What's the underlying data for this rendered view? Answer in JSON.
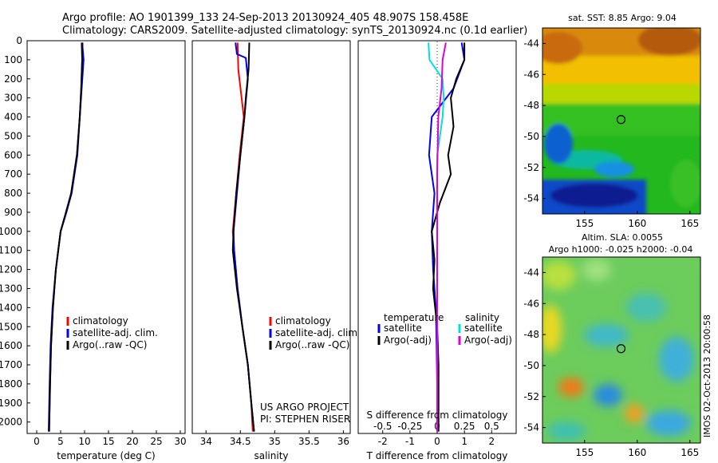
{
  "header": {
    "line1": "Argo profile: AO 1901399_133 24-Sep-2013 20130924_405 48.907S 158.458E",
    "line2": "Climatology: CARS2009. Satellite-adjusted climatology: synTS_20130924.nc (0.1d earlier)"
  },
  "side_label": "IMOS 02-Oct-2013 20:00:58",
  "chart_data": [
    {
      "type": "line",
      "id": "temperature",
      "xlabel": "temperature (deg C)",
      "ylabel": "",
      "xlim": [
        -2,
        31
      ],
      "ylim": [
        0,
        2060
      ],
      "xticks": [
        "0",
        "5",
        "10",
        "15",
        "20",
        "25",
        "30"
      ],
      "yticks": [
        "0",
        "100",
        "200",
        "300",
        "400",
        "500",
        "600",
        "700",
        "800",
        "900",
        "1000",
        "1100",
        "1200",
        "1300",
        "1400",
        "1500",
        "1600",
        "1700",
        "1800",
        "1900",
        "2000"
      ],
      "legend": [
        "climatology",
        "satellite-adj. clim.",
        "Argo(..raw -QC)"
      ],
      "series": [
        {
          "name": "climatology",
          "color": "#ff0000",
          "points": [
            [
              9.6,
              10
            ],
            [
              9.5,
              100
            ],
            [
              9.3,
              250
            ],
            [
              9.0,
              400
            ],
            [
              8.4,
              600
            ],
            [
              7.2,
              800
            ],
            [
              6.2,
              900
            ],
            [
              5.0,
              1000
            ],
            [
              4.0,
              1200
            ],
            [
              3.4,
              1400
            ],
            [
              3.0,
              1600
            ],
            [
              2.8,
              1800
            ],
            [
              2.6,
              2050
            ]
          ]
        },
        {
          "name": "satellite-adj. clim.",
          "color": "#0000ff",
          "points": [
            [
              9.5,
              10
            ],
            [
              9.8,
              100
            ],
            [
              9.4,
              250
            ],
            [
              9.0,
              400
            ],
            [
              8.5,
              600
            ],
            [
              7.3,
              800
            ],
            [
              6.2,
              900
            ],
            [
              5.0,
              1000
            ],
            [
              4.0,
              1200
            ],
            [
              3.3,
              1400
            ],
            [
              2.9,
              1600
            ],
            [
              2.7,
              1800
            ],
            [
              2.5,
              2050
            ]
          ]
        },
        {
          "name": "Argo(..raw -QC)",
          "color": "#000000",
          "points": [
            [
              9.4,
              10
            ],
            [
              9.5,
              100
            ],
            [
              9.3,
              250
            ],
            [
              9.0,
              400
            ],
            [
              8.4,
              600
            ],
            [
              7.2,
              800
            ],
            [
              6.1,
              900
            ],
            [
              5.0,
              1000
            ],
            [
              4.0,
              1200
            ],
            [
              3.4,
              1400
            ],
            [
              3.0,
              1600
            ],
            [
              2.8,
              1800
            ],
            [
              2.6,
              2050
            ]
          ]
        }
      ]
    },
    {
      "type": "line",
      "id": "salinity",
      "xlabel": "salinity",
      "xlim": [
        33.8,
        36.1
      ],
      "ylim": [
        0,
        2060
      ],
      "xticks": [
        "34",
        "34.5",
        "35",
        "35.5",
        "36"
      ],
      "legend": [
        "climatology",
        "satellite-adj. clim.",
        "Argo(..raw -QC)"
      ],
      "annotation": [
        "US ARGO PROJECT",
        "PI: STEPHEN RISER"
      ],
      "series": [
        {
          "name": "climatology",
          "color": "#ff0000",
          "points": [
            [
              34.46,
              10
            ],
            [
              34.47,
              150
            ],
            [
              34.55,
              400
            ],
            [
              34.49,
              600
            ],
            [
              34.44,
              800
            ],
            [
              34.39,
              1000
            ],
            [
              34.41,
              1100
            ],
            [
              34.46,
              1300
            ],
            [
              34.53,
              1500
            ],
            [
              34.61,
              1700
            ],
            [
              34.66,
              1900
            ],
            [
              34.68,
              2050
            ]
          ]
        },
        {
          "name": "satellite-adj. clim.",
          "color": "#0000ff",
          "points": [
            [
              34.43,
              10
            ],
            [
              34.45,
              70
            ],
            [
              34.58,
              90
            ],
            [
              34.61,
              200
            ],
            [
              34.56,
              400
            ],
            [
              34.5,
              600
            ],
            [
              34.45,
              800
            ],
            [
              34.4,
              1000
            ],
            [
              34.41,
              1100
            ],
            [
              34.46,
              1300
            ],
            [
              34.53,
              1500
            ],
            [
              34.61,
              1700
            ],
            [
              34.66,
              1900
            ],
            [
              34.7,
              2050
            ]
          ]
        },
        {
          "name": "Argo(..raw -QC)",
          "color": "#000000",
          "points": [
            [
              34.63,
              10
            ],
            [
              34.62,
              150
            ],
            [
              34.58,
              300
            ],
            [
              34.56,
              400
            ],
            [
              34.5,
              600
            ],
            [
              34.44,
              800
            ],
            [
              34.4,
              1000
            ],
            [
              34.39,
              1100
            ],
            [
              34.45,
              1300
            ],
            [
              34.53,
              1500
            ],
            [
              34.61,
              1700
            ],
            [
              34.66,
              1900
            ],
            [
              34.7,
              2050
            ]
          ]
        }
      ]
    },
    {
      "type": "line",
      "id": "difference",
      "xlabel": "T difference from climatology",
      "xlabel2": "S difference from climatology",
      "xlim": [
        -2.9,
        2.9
      ],
      "ylim": [
        0,
        2060
      ],
      "xticks": [
        "-2",
        "-1",
        "0",
        "1",
        "2"
      ],
      "xticks_s": [
        "-0.5",
        "-0.25",
        "0",
        "0.25",
        "0.5"
      ],
      "legend_headers": [
        "temperature",
        "salinity"
      ],
      "legend": [
        "satellite",
        "Argo(-adj)",
        "satellite",
        "Argo(-adj)"
      ],
      "series": [
        {
          "name": "temperature satellite",
          "color": "#0000ff",
          "points": [
            [
              0.9,
              10
            ],
            [
              1.0,
              100
            ],
            [
              0.6,
              250
            ],
            [
              -0.2,
              400
            ],
            [
              -0.3,
              600
            ],
            [
              -0.1,
              800
            ],
            [
              -0.2,
              1000
            ],
            [
              -0.15,
              1200
            ],
            [
              -0.05,
              1400
            ],
            [
              -0.02,
              1600
            ],
            [
              0.0,
              1800
            ],
            [
              0.0,
              2050
            ]
          ]
        },
        {
          "name": "temperature Argo(-adj)",
          "color": "#000000",
          "points": [
            [
              1.0,
              10
            ],
            [
              1.0,
              100
            ],
            [
              0.7,
              200
            ],
            [
              0.5,
              300
            ],
            [
              0.6,
              450
            ],
            [
              0.4,
              600
            ],
            [
              0.5,
              700
            ],
            [
              0.1,
              850
            ],
            [
              -0.2,
              1000
            ],
            [
              -0.1,
              1150
            ],
            [
              -0.15,
              1300
            ],
            [
              0.0,
              1500
            ],
            [
              0.05,
              1700
            ],
            [
              0.05,
              2050
            ]
          ]
        },
        {
          "name": "salinity satellite",
          "color": "#00e0e0",
          "points": [
            [
              -0.08,
              10
            ],
            [
              -0.07,
              100
            ],
            [
              0.05,
              200
            ],
            [
              0.06,
              300
            ],
            [
              0.05,
              400
            ],
            [
              0.0,
              600
            ],
            [
              0.0,
              900
            ],
            [
              0.0,
              2050
            ]
          ]
        },
        {
          "name": "salinity Argo(-adj)",
          "color": "#dd00dd",
          "points": [
            [
              0.08,
              10
            ],
            [
              0.05,
              100
            ],
            [
              0.04,
              250
            ],
            [
              0.01,
              400
            ],
            [
              0.0,
              700
            ],
            [
              0.0,
              1000
            ],
            [
              0.0,
              2050
            ]
          ]
        }
      ]
    },
    {
      "type": "heatmap",
      "id": "sst",
      "title": "sat. SST: 8.85 Argo: 9.04",
      "xlim": [
        151,
        166
      ],
      "ylim": [
        -55,
        -43
      ],
      "xticks": [
        "155",
        "160",
        "165"
      ],
      "yticks": [
        "-44",
        "-46",
        "-48",
        "-50",
        "-52",
        "-54"
      ],
      "marker": [
        158.46,
        -48.91
      ]
    },
    {
      "type": "heatmap",
      "id": "sla",
      "title": "Altim. SLA: 0.0055",
      "subtitle": "Argo h1000: -0.025 h2000: -0.04",
      "xlim": [
        151,
        166
      ],
      "ylim": [
        -55,
        -43
      ],
      "xticks": [
        "155",
        "160",
        "165"
      ],
      "yticks": [
        "-44",
        "-46",
        "-48",
        "-50",
        "-52",
        "-54"
      ],
      "marker": [
        158.46,
        -48.91
      ]
    }
  ]
}
